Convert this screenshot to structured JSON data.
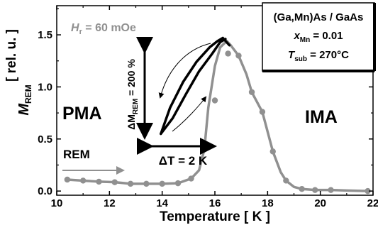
{
  "chart_data": {
    "type": "line",
    "title": "",
    "xlabel": "Temperature   [ K ]",
    "ylabel_main": "M",
    "ylabel_sub": "REM",
    "ylabel_unit": "[ rel. u. ]",
    "xlim": [
      10,
      22
    ],
    "ylim": [
      -0.04,
      1.78
    ],
    "x_ticks": [
      10,
      12,
      14,
      16,
      18,
      20,
      22
    ],
    "x_tick_labels": [
      "10",
      "12",
      "14",
      "16",
      "18",
      "20",
      "22"
    ],
    "y_ticks": [
      0.0,
      0.5,
      1.0,
      1.5
    ],
    "y_tick_labels": [
      "0.0",
      "0.5",
      "1.0",
      "1.5"
    ],
    "grid": false,
    "series": [
      {
        "color": "#909090",
        "marker": "circle",
        "points": [
          [
            10.4,
            0.11
          ],
          [
            11.0,
            0.1
          ],
          [
            11.6,
            0.09
          ],
          [
            12.2,
            0.085
          ],
          [
            12.8,
            0.07
          ],
          [
            13.4,
            0.07
          ],
          [
            14.0,
            0.07
          ],
          [
            14.6,
            0.075
          ],
          [
            15.1,
            0.12
          ],
          [
            15.6,
            0.4
          ],
          [
            16.0,
            0.87
          ],
          [
            16.5,
            1.32
          ],
          [
            16.9,
            1.3
          ],
          [
            17.4,
            0.95
          ],
          [
            17.8,
            0.76
          ],
          [
            18.2,
            0.38
          ],
          [
            18.7,
            0.1
          ],
          [
            19.3,
            0.02
          ],
          [
            19.8,
            0.01
          ],
          [
            20.4,
            0.01
          ],
          [
            21.8,
            0.0
          ]
        ],
        "line_x": [
          10.4,
          11.0,
          11.6,
          12.2,
          12.8,
          13.4,
          14.0,
          14.6,
          15.1,
          15.4,
          15.6,
          15.75,
          16.0,
          16.2,
          16.45,
          16.6,
          16.9,
          17.2,
          17.4,
          17.8,
          18.2,
          18.5,
          18.7,
          19.0,
          19.3,
          19.8,
          20.4,
          21.0,
          21.8
        ],
        "line_y": [
          0.11,
          0.1,
          0.09,
          0.085,
          0.07,
          0.07,
          0.07,
          0.075,
          0.12,
          0.2,
          0.4,
          0.8,
          1.2,
          1.38,
          1.44,
          1.4,
          1.3,
          1.12,
          0.95,
          0.76,
          0.38,
          0.18,
          0.1,
          0.04,
          0.02,
          0.01,
          0.01,
          0.005,
          0.0
        ]
      }
    ],
    "hysteresis_loop": {
      "color": "#000000",
      "upper_x": [
        13.95,
        14.3,
        14.8,
        15.3,
        15.8,
        16.1,
        16.3,
        16.55
      ],
      "upper_y": [
        0.55,
        0.8,
        1.05,
        1.24,
        1.38,
        1.44,
        1.47,
        1.4
      ],
      "lower_x": [
        13.95,
        14.4,
        14.9,
        15.4,
        15.9,
        16.2,
        16.4
      ],
      "lower_y": [
        0.55,
        0.7,
        0.93,
        1.15,
        1.32,
        1.43,
        1.46
      ]
    },
    "info_box": {
      "line1": "(Ga,Mn)As / GaAs",
      "x_label": "x",
      "x_sub": "Mn",
      "x_value": " = 0.01",
      "t_label": "T",
      "t_sub": "sub",
      "t_value": " = 270°C"
    },
    "field_label": {
      "h_label": "H",
      "h_sub": "r",
      "h_value": " = 60 mOe",
      "color": "#909090"
    },
    "annotations": {
      "pma": "PMA",
      "ima": "IMA",
      "rem": "REM",
      "delta_t": "ΔT = 2 K",
      "delta_m_prefix": "ΔM",
      "delta_m_sub": "REM",
      "delta_m_value": " = 200 %"
    }
  }
}
